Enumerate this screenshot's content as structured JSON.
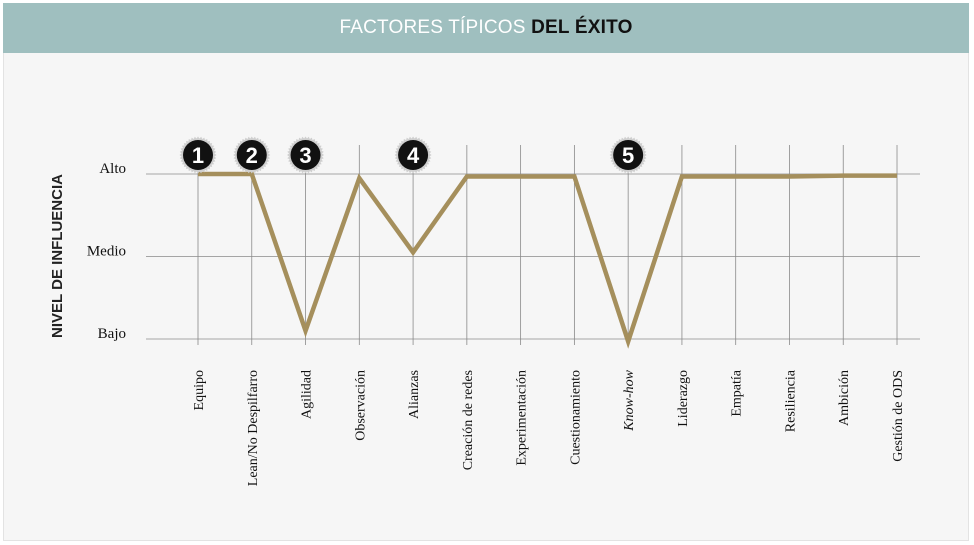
{
  "title": {
    "part1": "FACTORES TÍPICOS ",
    "part2": "DEL ÉXITO"
  },
  "colors": {
    "header_bg": "#9fbfbf",
    "line": "#a58f5c",
    "grid": "#8a8a8a",
    "badge": "#111111"
  },
  "chart_data": {
    "type": "line",
    "title": "FACTORES TÍPICOS DEL ÉXITO",
    "ylabel": "NIVEL DE INFLUENCIA",
    "xlabel": "",
    "y_levels": [
      "Bajo",
      "Medio",
      "Alto"
    ],
    "ylim": [
      1,
      3
    ],
    "grid": true,
    "categories": [
      "Equipo",
      "Lean/No Despilfarro",
      "Agilidad",
      "Observación",
      "Alianzas",
      "Creación de redes",
      "Experimentación",
      "Cuestionamiento",
      "Know-how",
      "Liderazgo",
      "Empatía",
      "Resiliencia",
      "Ambición",
      "Gestión de ODS"
    ],
    "italic_parts": [
      "Lean",
      "",
      "",
      "",
      "",
      "",
      "",
      "",
      "Know-how",
      "",
      "",
      "",
      "",
      ""
    ],
    "series": [
      {
        "values": [
          3,
          3,
          1.1,
          2.95,
          2.05,
          2.97,
          2.97,
          2.97,
          0.97,
          2.97,
          2.97,
          2.97,
          2.98,
          2.98
        ]
      }
    ],
    "annotations": [
      {
        "label": "1",
        "category": "Equipo"
      },
      {
        "label": "2",
        "category": "Lean/No Despilfarro"
      },
      {
        "label": "3",
        "category": "Agilidad"
      },
      {
        "label": "4",
        "category": "Alianzas"
      },
      {
        "label": "5",
        "category": "Know-how"
      }
    ]
  }
}
